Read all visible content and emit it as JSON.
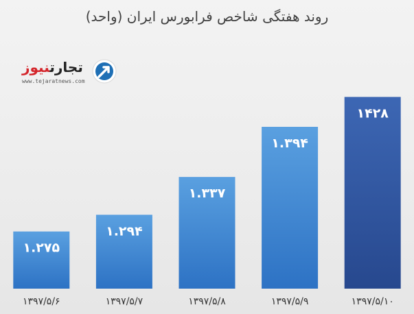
{
  "chart_data": {
    "type": "bar",
    "title": "روند هفتگی شاخص فرابورس ایران (واحد)",
    "categories": [
      "۱۳۹۷/۵/۶",
      "۱۳۹۷/۵/۷",
      "۱۳۹۷/۵/۸",
      "۱۳۹۷/۵/۹",
      "۱۳۹۷/۵/۱۰"
    ],
    "values": [
      1275,
      1294,
      1337,
      1394,
      1428
    ],
    "value_labels": [
      "۱.۲۷۵",
      "۱.۲۹۴",
      "۱.۳۳۷",
      "۱.۳۹۴",
      "۱۴۲۸"
    ],
    "ylim": [
      1210,
      1440
    ],
    "grid": false,
    "colors": {
      "bar_top": "#5aa0e0",
      "bar_bottom": "#2d72c4",
      "highlight_top": "#3d67b4",
      "highlight_bottom": "#27488e"
    },
    "highlight_index": 4
  },
  "logo": {
    "brand_black": "تجارت",
    "brand_red": "نیوز",
    "url": "www.tejaratnews.com"
  }
}
